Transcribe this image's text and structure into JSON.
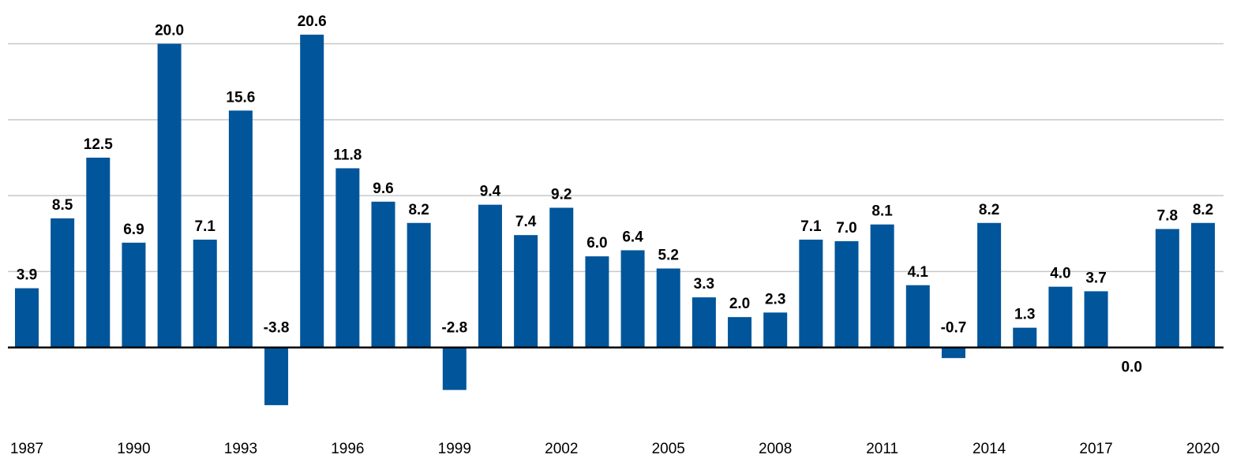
{
  "chart_data": {
    "type": "bar",
    "categories": [
      "1987",
      null,
      null,
      "1990",
      null,
      null,
      "1993",
      null,
      null,
      "1996",
      null,
      null,
      "1999",
      null,
      null,
      "2002",
      null,
      null,
      "2005",
      null,
      null,
      "2008",
      null,
      null,
      "2011",
      null,
      null,
      "2014",
      null,
      null,
      "2017",
      null,
      null,
      "2020"
    ],
    "values": [
      3.9,
      8.5,
      12.5,
      6.9,
      20.0,
      7.1,
      15.6,
      -3.8,
      20.6,
      11.8,
      9.6,
      8.2,
      -2.8,
      9.4,
      7.4,
      9.2,
      6.0,
      6.4,
      5.2,
      3.3,
      2.0,
      2.3,
      7.1,
      7.0,
      8.1,
      4.1,
      -0.7,
      8.2,
      1.3,
      4.0,
      3.7,
      0.0,
      7.8,
      8.2
    ],
    "value_labels": [
      "3.9",
      "8.5",
      "12.5",
      "6.9",
      "20.0",
      "7.1",
      "15.6",
      "-3.8",
      "20.6",
      "11.8",
      "9.6",
      "8.2",
      "-2.8",
      "9.4",
      "7.4",
      "9.2",
      "6.0",
      "6.4",
      "5.2",
      "3.3",
      "2.0",
      "2.3",
      "7.1",
      "7.0",
      "8.1",
      "4.1",
      "-0.7",
      "8.2",
      "1.3",
      "4.0",
      "3.7",
      "0.0",
      "7.8",
      "8.2"
    ],
    "color": "#00559b",
    "ylim": [
      -5,
      22
    ],
    "yticks": [
      0,
      5,
      10,
      15,
      20
    ],
    "ytick_labels": false,
    "grid": true
  }
}
